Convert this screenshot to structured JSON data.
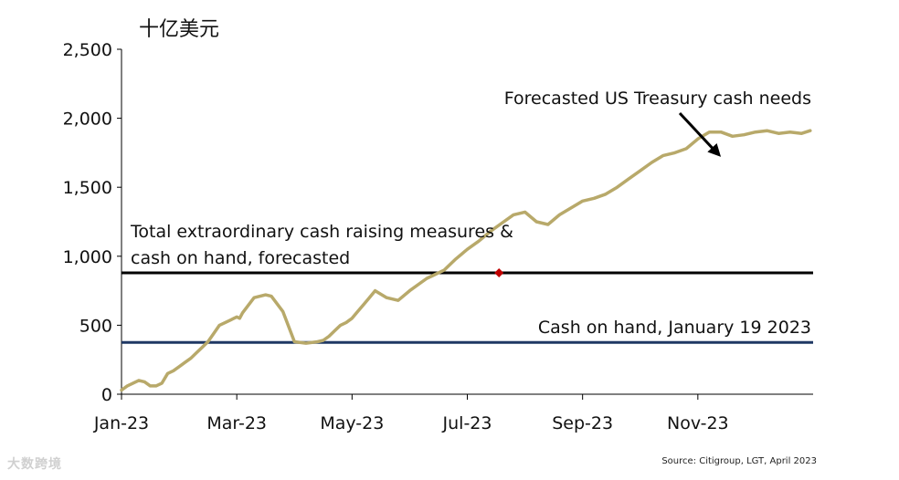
{
  "unit_label": "十亿美元",
  "source": "Source: Citigroup, LGT, April 2023",
  "watermark": "大数跨境",
  "colors": {
    "series": "#B8A96A",
    "total_line": "#000000",
    "cash_line": "#1F3864",
    "marker": "#C00000",
    "axis": "#000000"
  },
  "chart_data": {
    "type": "line",
    "title": "",
    "ylabel": "十亿美元",
    "xlabel": "",
    "ylim": [
      0,
      2500
    ],
    "xlim": [
      0,
      12
    ],
    "y_ticks": [
      0,
      500,
      1000,
      1500,
      2000,
      2500
    ],
    "y_tick_labels": [
      "0",
      "500",
      "1,000",
      "1,500",
      "2,000",
      "2,500"
    ],
    "x_ticks": [
      0,
      2,
      4,
      6,
      8,
      10
    ],
    "x_tick_labels": [
      "Jan-23",
      "Mar-23",
      "May-23",
      "Jul-23",
      "Sep-23",
      "Nov-23"
    ],
    "series": [
      {
        "name": "Forecasted US Treasury cash needs",
        "x": [
          0.0,
          0.1,
          0.2,
          0.3,
          0.4,
          0.5,
          0.6,
          0.7,
          0.8,
          0.9,
          1.0,
          1.1,
          1.2,
          1.3,
          1.4,
          1.5,
          1.6,
          1.7,
          1.8,
          1.9,
          2.0,
          2.05,
          2.1,
          2.3,
          2.5,
          2.6,
          2.8,
          3.0,
          3.2,
          3.4,
          3.5,
          3.6,
          3.7,
          3.8,
          3.9,
          4.0,
          4.1,
          4.2,
          4.3,
          4.4,
          4.6,
          4.8,
          5.0,
          5.2,
          5.3,
          5.4,
          5.6,
          5.8,
          6.0,
          6.2,
          6.4,
          6.6,
          6.8,
          7.0,
          7.2,
          7.4,
          7.6,
          7.8,
          8.0,
          8.2,
          8.4,
          8.6,
          8.8,
          9.0,
          9.2,
          9.4,
          9.6,
          9.8,
          10.0,
          10.2,
          10.4,
          10.6,
          10.8,
          11.0,
          11.2,
          11.4,
          11.6,
          11.8,
          11.95
        ],
        "values": [
          30,
          60,
          80,
          100,
          90,
          60,
          60,
          80,
          150,
          170,
          200,
          230,
          260,
          300,
          340,
          380,
          440,
          500,
          520,
          540,
          560,
          550,
          590,
          700,
          720,
          710,
          600,
          380,
          370,
          380,
          390,
          420,
          460,
          500,
          520,
          550,
          600,
          650,
          700,
          750,
          700,
          680,
          750,
          810,
          840,
          860,
          900,
          980,
          1050,
          1110,
          1180,
          1240,
          1300,
          1320,
          1250,
          1230,
          1300,
          1350,
          1400,
          1420,
          1450,
          1500,
          1560,
          1620,
          1680,
          1730,
          1750,
          1780,
          1850,
          1900,
          1900,
          1870,
          1880,
          1900,
          1910,
          1890,
          1900,
          1890,
          1910
        ]
      },
      {
        "name": "Total extraordinary cash raising measures & cash on hand, forecasted",
        "label_lines": [
          "Total extraordinary cash raising measures &",
          "cash on hand, forecasted"
        ],
        "x": [
          0,
          12
        ],
        "values": [
          880,
          880
        ]
      },
      {
        "name": "Cash on hand, January 19 2023",
        "x": [
          0,
          12
        ],
        "values": [
          375,
          375
        ]
      }
    ],
    "marker": {
      "x": 6.55,
      "value": 880
    },
    "annotations": [
      {
        "text": "Forecasted US Treasury cash needs",
        "arrow_to_x": 10.4,
        "arrow_to_value": 1720
      }
    ]
  }
}
